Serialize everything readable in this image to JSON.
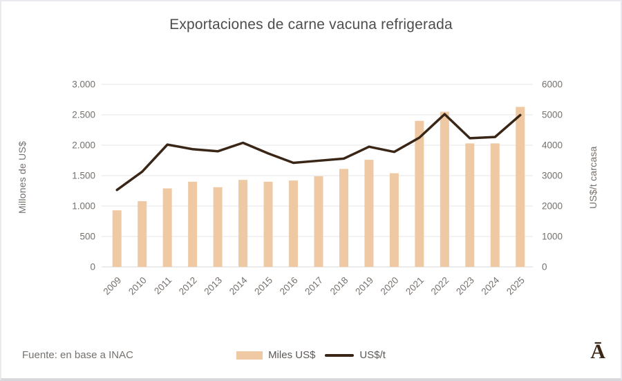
{
  "chart_data": {
    "type": "bar+line combo",
    "title": "Exportaciones de carne vacuna refrigerada",
    "categories": [
      "2009",
      "2010",
      "2011",
      "2012",
      "2013",
      "2014",
      "2015",
      "2016",
      "2017",
      "2018",
      "2019",
      "2020",
      "2021",
      "2022",
      "2023",
      "2024",
      "2025"
    ],
    "series": [
      {
        "name": "Miles US$",
        "type": "bar",
        "axis": "left",
        "values": [
          930,
          1080,
          1290,
          1400,
          1310,
          1430,
          1400,
          1420,
          1490,
          1610,
          1760,
          1540,
          2400,
          2550,
          2030,
          2030,
          2630
        ]
      },
      {
        "name": "US$/t",
        "type": "line",
        "axis": "right",
        "values": [
          2530,
          3130,
          4020,
          3870,
          3800,
          4080,
          3730,
          3420,
          3490,
          3560,
          3950,
          3780,
          4250,
          5020,
          4230,
          4270,
          4990
        ]
      }
    ],
    "left_axis": {
      "label": "Millones de US$",
      "min": 0,
      "max": 3000,
      "step": 500,
      "tick_labels": [
        "0",
        "500",
        "1.000",
        "1.500",
        "2.000",
        "2.500",
        "3.000"
      ]
    },
    "right_axis": {
      "label": "US$/t carcasa",
      "min": 0,
      "max": 6000,
      "step": 1000,
      "tick_labels": [
        "0",
        "1000",
        "2000",
        "3000",
        "4000",
        "5000",
        "6000"
      ]
    },
    "grid": "horizontal",
    "legend_position": "bottom-center"
  },
  "legend": {
    "bar_label": "Miles US$",
    "line_label": "US$/t"
  },
  "footer": {
    "source": "Fuente: en base a INAC",
    "logo": "Ā"
  },
  "colors": {
    "bar": "#EFC9A3",
    "line": "#3A2617",
    "grid": "#E4E4E4",
    "zero_line": "#D9D9D9",
    "tick_text": "#76706C",
    "title_text": "#4D4D4D"
  }
}
